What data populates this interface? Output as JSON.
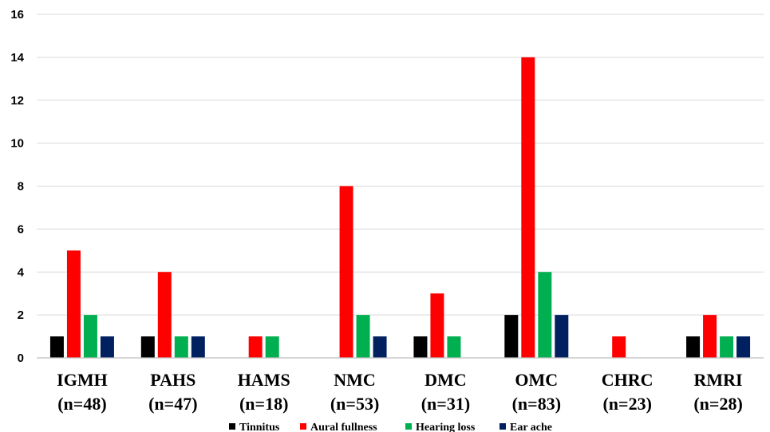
{
  "chart_data": {
    "type": "bar",
    "title": "",
    "xlabel": "",
    "ylabel": "",
    "ylim": [
      0,
      16
    ],
    "yticks": [
      0,
      2,
      4,
      6,
      8,
      10,
      12,
      14,
      16
    ],
    "grid": true,
    "legend_position": "bottom",
    "categories": [
      [
        "IGMH",
        "(n=48)"
      ],
      [
        "PAHS",
        "(n=47)"
      ],
      [
        "HAMS",
        "(n=18)"
      ],
      [
        "NMC",
        "(n=53)"
      ],
      [
        "DMC",
        "(n=31)"
      ],
      [
        "OMC",
        "(n=83)"
      ],
      [
        "CHRC",
        "(n=23)"
      ],
      [
        "RMRI",
        "(n=28)"
      ]
    ],
    "series": [
      {
        "name": "Tinnitus",
        "color": "#000000",
        "values": [
          1,
          1,
          0,
          0,
          1,
          2,
          0,
          1
        ]
      },
      {
        "name": "Aural fullness",
        "color": "#ff0000",
        "values": [
          5,
          4,
          1,
          8,
          3,
          14,
          1,
          2
        ]
      },
      {
        "name": "Hearing loss",
        "color": "#00b050",
        "values": [
          2,
          1,
          1,
          2,
          1,
          4,
          0,
          1
        ]
      },
      {
        "name": "Ear ache",
        "color": "#002060",
        "values": [
          1,
          1,
          0,
          1,
          0,
          2,
          0,
          1
        ]
      }
    ]
  }
}
